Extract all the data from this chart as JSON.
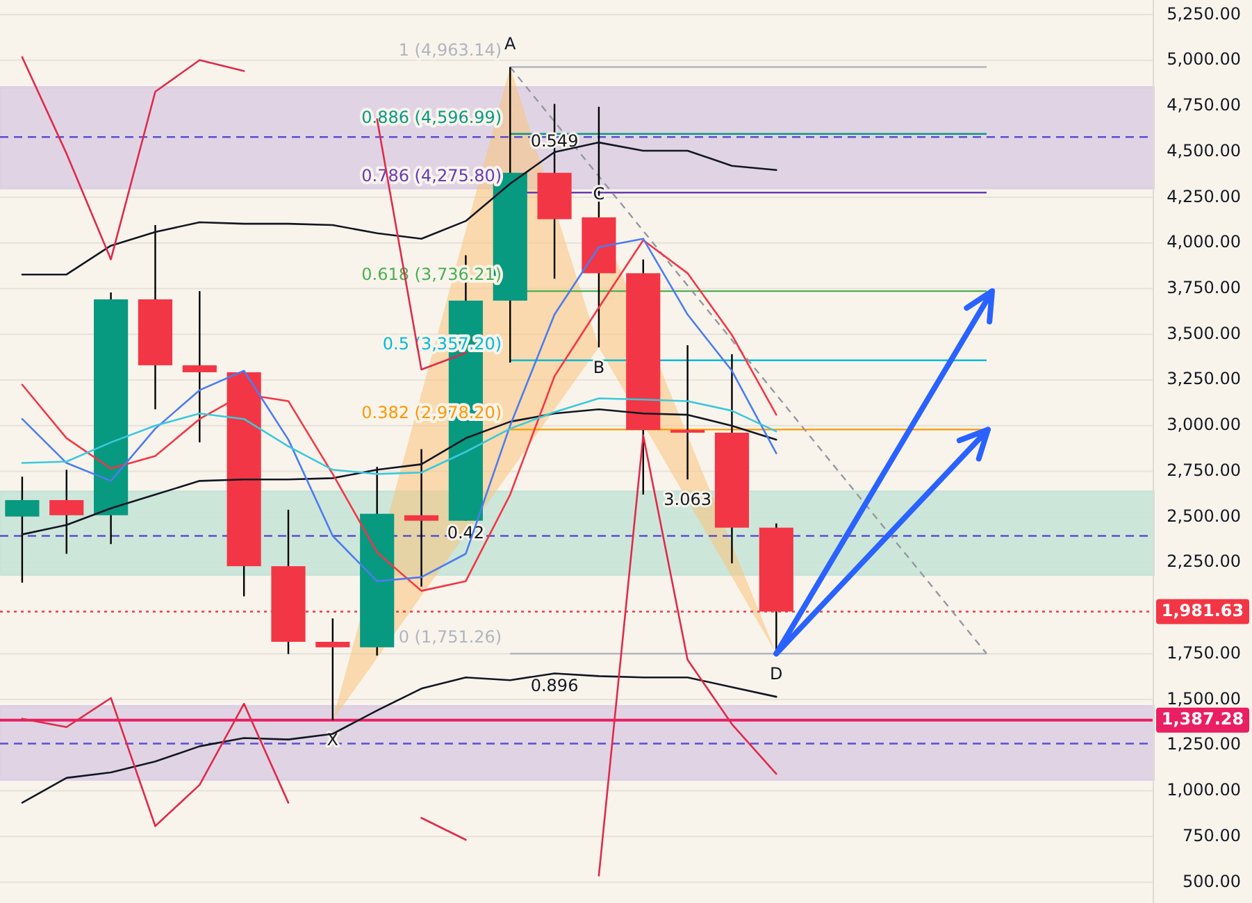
{
  "chart_data": [
    {
      "type": "candlestick",
      "grid": "y",
      "categories": [
        null,
        null,
        null,
        null,
        null,
        null,
        null,
        null,
        null,
        null,
        null,
        null,
        null,
        null,
        null,
        null,
        null,
        null,
        null,
        null,
        null,
        null,
        null,
        null,
        null,
        null
      ],
      "ylim": [
        386,
        5330
      ],
      "yticks": [
        {
          "value": 500,
          "label": "500.00"
        },
        {
          "value": 750,
          "label": "750.00"
        },
        {
          "value": 1000,
          "label": "1,000.00"
        },
        {
          "value": 1250,
          "label": "1,250.00"
        },
        {
          "value": 1387.28,
          "label": "1,387.28"
        },
        {
          "value": 1500,
          "label": "1,500.00"
        },
        {
          "value": 1750,
          "label": "1,750.00"
        },
        {
          "value": 1981.63,
          "label": "1,981.63"
        },
        {
          "value": 2250,
          "label": "2,250.00"
        },
        {
          "value": 2500,
          "label": "2,500.00"
        },
        {
          "value": 2750,
          "label": "2,750.00"
        },
        {
          "value": 3000,
          "label": "3,000.00"
        },
        {
          "value": 3250,
          "label": "3,250.00"
        },
        {
          "value": 3500,
          "label": "3,500.00"
        },
        {
          "value": 3750,
          "label": "3,750.00"
        },
        {
          "value": 4000,
          "label": "4,000.00"
        },
        {
          "value": 4250,
          "label": "4,250.00"
        },
        {
          "value": 4500,
          "label": "4,500.00"
        },
        {
          "value": 4750,
          "label": "4,750.00"
        },
        {
          "value": 5000,
          "label": "5,000.00"
        },
        {
          "value": 5250,
          "label": "5,250.00"
        }
      ],
      "ohlc": [
        [
          2502,
          2720,
          2140,
          2592
        ],
        [
          2592,
          2758,
          2298,
          2509
        ],
        [
          2509,
          3729,
          2351,
          3691
        ],
        [
          3691,
          4098,
          3089,
          3330
        ],
        [
          3330,
          3736,
          2908,
          3292
        ],
        [
          3292,
          3300,
          2065,
          2230
        ],
        [
          2230,
          2539,
          1749,
          1816
        ],
        [
          1816,
          1944,
          1387.28,
          1786
        ],
        [
          1786,
          2773,
          1741,
          2517
        ],
        [
          2509,
          2871,
          2118,
          2479
        ],
        [
          2479,
          3932,
          2479,
          3684
        ],
        [
          3684,
          4963.14,
          3345,
          4384
        ],
        [
          4384,
          4761,
          3804,
          4130
        ],
        [
          4140,
          4745,
          3428,
          3834
        ],
        [
          3834,
          3910,
          2622,
          2976
        ],
        [
          2976,
          3440,
          2705,
          2961
        ],
        [
          2961,
          3390,
          2246,
          2441
        ],
        [
          2441,
          2464,
          1751.26,
          1981.63
        ],
        null,
        null,
        null,
        null,
        null,
        null,
        null,
        null
      ],
      "colors": [
        "#089981",
        "#f23645",
        "#089981",
        "#f23645",
        "#f23645",
        "#f23645",
        "#f23645",
        "#f23645",
        "#089981",
        "#f23645",
        "#089981",
        "#089981",
        "#f23645",
        "#f23645",
        "#f23645",
        "#f23645",
        "#f23645",
        "#f23645",
        null,
        null,
        null,
        null,
        null,
        null,
        null,
        null
      ],
      "bands": [
        {
          "axis": "y",
          "from": 4301,
          "to": 4851,
          "color": "#ddd0e3"
        },
        {
          "axis": "y",
          "from": 2185,
          "to": 2637,
          "color": "#c8e4d8"
        },
        {
          "axis": "y",
          "from": 1063,
          "to": 1462,
          "color": "#ddd0e3"
        }
      ],
      "ref_lines": [
        {
          "axis": "y",
          "value": 4963.14,
          "label": "1 (4,963.14)",
          "color": "#b2b5be"
        },
        {
          "axis": "y",
          "value": 4596.99,
          "label": "0.886 (4,596.99)",
          "color": "#089981"
        },
        {
          "axis": "y",
          "value": 4275.8,
          "label": "0.786 (4,275.80)",
          "color": "#673ab7"
        },
        {
          "axis": "y",
          "value": 3736.21,
          "label": "0.618 (3,736.21)",
          "color": "#4caf50"
        },
        {
          "axis": "y",
          "value": 3357.2,
          "label": "0.5 (3,357.20)",
          "color": "#00bcd4"
        },
        {
          "axis": "y",
          "value": 2978.2,
          "label": "0.382 (2,978.20)",
          "color": "#ff9800"
        },
        {
          "axis": "y",
          "value": 1751.26,
          "label": "0 (1,751.26)",
          "color": "#b2b5be"
        },
        {
          "axis": "y",
          "value": 4580,
          "color": "#5b4fcf",
          "line_style": "dashed"
        },
        {
          "axis": "y",
          "value": 2396,
          "color": "#5b4fcf",
          "line_style": "dashed"
        },
        {
          "axis": "y",
          "value": 1259,
          "color": "#5b4fcf",
          "line_style": "dashed"
        },
        {
          "axis": "y",
          "value": 1981.63,
          "color": "#f23645",
          "line_style": "dotted"
        },
        {
          "axis": "y",
          "value": 1387.28,
          "color": "#e91e63",
          "line_style": "solid"
        }
      ],
      "annotations": [
        {
          "text": "X",
          "y": 1387.28
        },
        {
          "text": "A",
          "y": 4963.14
        },
        {
          "text": "B",
          "y": 3428
        },
        {
          "text": "C",
          "y": 4140
        },
        {
          "text": "D",
          "y": 1751.26
        },
        "0.42",
        "0.549",
        "3.063",
        "0.896"
      ]
    },
    {
      "type": "line",
      "ylim": [
        386,
        5330
      ],
      "categories": [
        null,
        null,
        null,
        null,
        null,
        null,
        null,
        null,
        null,
        null,
        null,
        null,
        null,
        null,
        null,
        null,
        null,
        null,
        null,
        null,
        null,
        null,
        null,
        null,
        null,
        null
      ],
      "series": [
        {
          "color": "#131722",
          "values": [
            3827,
            3827,
            3985,
            4060,
            4113,
            4105,
            4105,
            4098,
            4053,
            4023,
            4120,
            4324,
            4497,
            4550,
            4505,
            4505,
            4422,
            4399,
            null,
            null,
            null,
            null,
            null,
            null,
            null,
            null
          ]
        }
      ]
    },
    {
      "type": "line",
      "ylim": [
        386,
        5330
      ],
      "categories": [
        null,
        null,
        null,
        null,
        null,
        null,
        null,
        null,
        null,
        null,
        null,
        null,
        null,
        null,
        null,
        null,
        null,
        null,
        null,
        null,
        null,
        null,
        null,
        null,
        null,
        null
      ],
      "series": [
        {
          "color": "#131722",
          "values": [
            2404,
            2456,
            2547,
            2622,
            2697,
            2705,
            2705,
            2712,
            2758,
            2788,
            2931,
            3021,
            3066,
            3089,
            3066,
            3059,
            2999,
            2923,
            null,
            null,
            null,
            null,
            null,
            null,
            null,
            null
          ]
        }
      ]
    },
    {
      "type": "line",
      "ylim": [
        386,
        5330
      ],
      "categories": [
        null,
        null,
        null,
        null,
        null,
        null,
        null,
        null,
        null,
        null,
        null,
        null,
        null,
        null,
        null,
        null,
        null,
        null,
        null,
        null,
        null,
        null,
        null,
        null,
        null,
        null
      ],
      "series": [
        {
          "color": "#131722",
          "values": [
            935,
            1071,
            1101,
            1161,
            1244,
            1289,
            1281,
            1312,
            1440,
            1560,
            1621,
            1606,
            1643,
            1628,
            1621,
            1621,
            1568,
            1515,
            null,
            null,
            null,
            null,
            null,
            null,
            null,
            null
          ]
        }
      ]
    },
    {
      "type": "line",
      "ylim": [
        386,
        5330
      ],
      "categories": [
        null,
        null,
        null,
        null,
        null,
        null,
        null,
        null,
        null,
        null,
        null,
        null,
        null,
        null,
        null,
        null,
        null,
        null,
        null,
        null,
        null,
        null,
        null,
        null,
        null,
        null
      ],
      "series": [
        {
          "color": "#f23645",
          "values": [
            3224,
            2931,
            2765,
            2833,
            3036,
            3172,
            3134,
            2735,
            2306,
            2095,
            2148,
            2622,
            3270,
            3646,
            4015,
            3834,
            3496,
            3059,
            null,
            null,
            null,
            null,
            null,
            null,
            null,
            null
          ]
        }
      ]
    },
    {
      "type": "line",
      "ylim": [
        386,
        5330
      ],
      "categories": [
        null,
        null,
        null,
        null,
        null,
        null,
        null,
        null,
        null,
        null,
        null,
        null,
        null,
        null,
        null,
        null,
        null,
        null,
        null,
        null,
        null,
        null,
        null,
        null,
        null,
        null
      ],
      "series": [
        {
          "color": "#4c7cf0",
          "values": [
            3036,
            2795,
            2697,
            2983,
            3194,
            3300,
            2923,
            2396,
            2148,
            2170,
            2298,
            3000,
            3608,
            3977,
            4023,
            3608,
            3300,
            2848,
            null,
            null,
            null,
            null,
            null,
            null,
            null,
            null
          ]
        }
      ]
    },
    {
      "type": "line",
      "ylim": [
        386,
        5330
      ],
      "categories": [
        null,
        null,
        null,
        null,
        null,
        null,
        null,
        null,
        null,
        null,
        null,
        null,
        null,
        null,
        null,
        null,
        null,
        null,
        null,
        null,
        null,
        null,
        null,
        null,
        null,
        null
      ],
      "series": [
        {
          "color": "#3cc8dc",
          "values": [
            2795,
            2803,
            2908,
            3000,
            3066,
            3036,
            2886,
            2758,
            2735,
            2743,
            2856,
            2983,
            3074,
            3149,
            3142,
            3134,
            3081,
            2968,
            null,
            null,
            null,
            null,
            null,
            null,
            null,
            null
          ]
        }
      ]
    },
    {
      "type": "line",
      "ylim": [
        386,
        5330
      ],
      "categories": [
        null,
        null,
        null,
        null,
        null,
        null,
        null,
        null,
        null,
        null,
        null,
        null,
        null,
        null,
        null,
        null,
        null,
        null,
        null,
        null,
        null,
        null,
        null,
        null,
        null,
        null
      ],
      "series": [
        {
          "color": "#e0294a",
          "values": [
            5017,
            4489,
            3910,
            4828,
            5001,
            4941,
            null,
            null,
            null,
            null,
            null,
            null,
            null,
            null,
            null,
            null,
            null,
            null,
            null,
            null,
            null,
            null,
            null,
            null,
            null,
            null
          ]
        }
      ]
    },
    {
      "type": "line",
      "ylim": [
        386,
        5330
      ],
      "categories": [
        null,
        null,
        null,
        null,
        null,
        null,
        null,
        null,
        null,
        null,
        null,
        null,
        null,
        null,
        null,
        null,
        null,
        null,
        null,
        null,
        null,
        null,
        null,
        null,
        null,
        null
      ],
      "series": [
        {
          "color": "#e0294a",
          "values": [
            null,
            null,
            null,
            null,
            null,
            null,
            null,
            null,
            4678,
            3307,
            3398,
            null,
            null,
            null,
            null,
            null,
            null,
            null,
            null,
            null,
            null,
            null,
            null,
            null,
            null,
            null
          ]
        }
      ]
    },
    {
      "type": "line",
      "ylim": [
        386,
        5330
      ],
      "categories": [
        null,
        null,
        null,
        null,
        null,
        null,
        null,
        null,
        null,
        null,
        null,
        null,
        null,
        null,
        null,
        null,
        null,
        null,
        null,
        null,
        null,
        null,
        null,
        null,
        null,
        null
      ],
      "series": [
        {
          "color": "#e0294a",
          "values": [
            1395,
            1349,
            1508,
            807,
            1033,
            1477,
            935,
            null,
            null,
            null,
            null,
            null,
            null,
            null,
            null,
            null,
            null,
            null,
            null,
            null,
            null,
            null,
            null,
            null,
            null,
            null
          ]
        }
      ]
    },
    {
      "type": "line",
      "ylim": [
        386,
        5330
      ],
      "categories": [
        null,
        null,
        null,
        null,
        null,
        null,
        null,
        null,
        null,
        null,
        null,
        null,
        null,
        null,
        null,
        null,
        null,
        null,
        null,
        null,
        null,
        null,
        null,
        null,
        null,
        null
      ],
      "series": [
        {
          "color": "#e0294a",
          "values": [
            null,
            null,
            null,
            null,
            null,
            null,
            null,
            null,
            null,
            852,
            732,
            null,
            null,
            null,
            null,
            null,
            null,
            null,
            null,
            null,
            null,
            null,
            null,
            null,
            null,
            null
          ]
        }
      ]
    },
    {
      "type": "line",
      "ylim": [
        386,
        5330
      ],
      "categories": [
        null,
        null,
        null,
        null,
        null,
        null,
        null,
        null,
        null,
        null,
        null,
        null,
        null,
        null,
        null,
        null,
        null,
        null,
        null,
        null,
        null,
        null,
        null,
        null,
        null,
        null
      ],
      "series": [
        {
          "color": "#e0294a",
          "values": [
            null,
            null,
            null,
            null,
            null,
            null,
            null,
            null,
            null,
            null,
            null,
            null,
            null,
            536,
            2946,
            1718,
            1365,
            1093,
            null,
            null,
            null,
            null,
            null,
            null,
            null,
            null
          ]
        }
      ]
    }
  ]
}
